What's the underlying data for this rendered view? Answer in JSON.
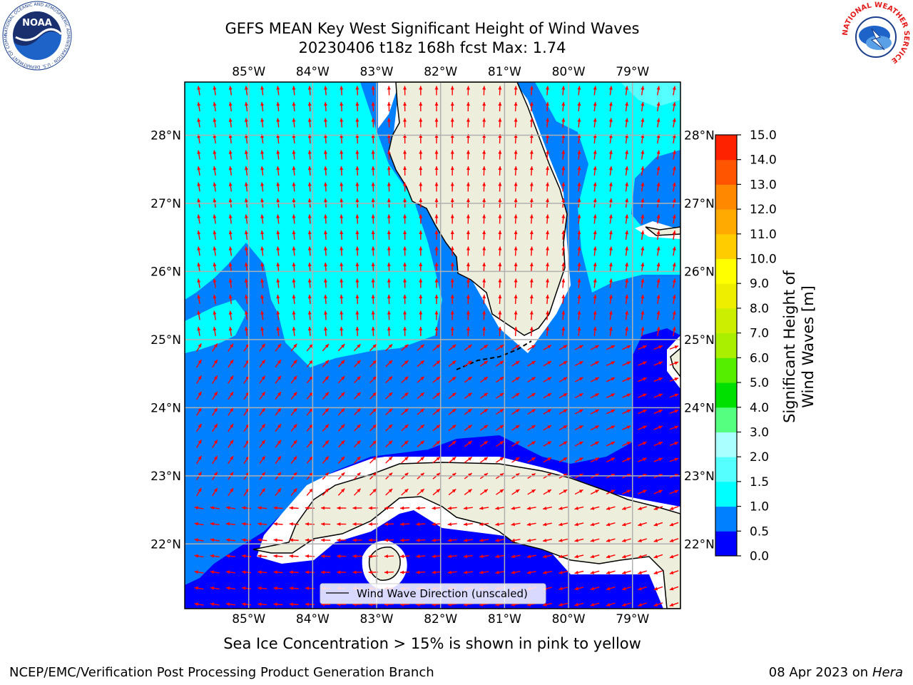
{
  "header": {
    "title_line1": "GEFS MEAN Key West Significant Height of Wind Waves",
    "title_line2": "20230406 t18z 168h fcst   Max: 1.74"
  },
  "logos": {
    "noaa_text": "NOAA",
    "noaa_ring_text": "NATIONAL OCEANIC AND ATMOSPHERIC ADMINISTRATION · U.S. DEPARTMENT OF COMMERCE",
    "nws_ring_text": "NATIONAL WEATHER SERVICE"
  },
  "chart_data": {
    "type": "heatmap",
    "title": "GEFS MEAN Key West Significant Height of Wind Waves",
    "run": "20230406 t18z 168h fcst",
    "max_value": 1.74,
    "x_ticks": [
      {
        "value": -85,
        "label": "85°W"
      },
      {
        "value": -84,
        "label": "84°W"
      },
      {
        "value": -83,
        "label": "83°W"
      },
      {
        "value": -82,
        "label": "82°W"
      },
      {
        "value": -81,
        "label": "81°W"
      },
      {
        "value": -80,
        "label": "80°W"
      },
      {
        "value": -79,
        "label": "79°W"
      }
    ],
    "y_ticks": [
      {
        "value": 28,
        "label": "28°N"
      },
      {
        "value": 27,
        "label": "27°N"
      },
      {
        "value": 26,
        "label": "26°N"
      },
      {
        "value": 25,
        "label": "25°N"
      },
      {
        "value": 24,
        "label": "24°N"
      },
      {
        "value": 23,
        "label": "23°N"
      },
      {
        "value": 22,
        "label": "22°N"
      }
    ],
    "xlim": [
      -86,
      -78.25
    ],
    "ylim": [
      21.05,
      28.78
    ],
    "grid": true,
    "colorbar": {
      "label": "Significant Height of Wind Waves [m]",
      "levels": [
        0.0,
        0.5,
        1.0,
        1.5,
        2.0,
        3.0,
        4.0,
        5.0,
        6.0,
        7.0,
        8.0,
        9.0,
        10.0,
        11.0,
        12.0,
        13.0,
        14.0,
        15.0
      ],
      "level_labels": [
        "0.0",
        "0.5",
        "1.0",
        "1.5",
        "2.0",
        "3.0",
        "4.0",
        "5.0",
        "6.0",
        "7.0",
        "8.0",
        "9.0",
        "10.0",
        "11.0",
        "12.0",
        "13.0",
        "14.0",
        "15.0"
      ],
      "colors": [
        "#0000ff",
        "#0080ff",
        "#00ffff",
        "#55ffff",
        "#aaffff",
        "#55ff80",
        "#00e000",
        "#55ee00",
        "#aaee00",
        "#ccee00",
        "#eeee00",
        "#ffff00",
        "#ffcc00",
        "#ffaa00",
        "#ff8800",
        "#ff5500",
        "#ff2200"
      ]
    },
    "legend": {
      "label": "Wind Wave Direction (unscaled)",
      "placement": "bottom-center"
    },
    "colors": {
      "land": "#eeeedd",
      "arrow": "#ff0000",
      "grid": "#b0b0b0",
      "coast": "#000000"
    }
  },
  "footer": {
    "subtitle": "Sea Ice Concentration > 15% is shown in pink to yellow",
    "left": "NCEP/EMC/Verification Post Processing Product Generation Branch",
    "right_date": "08 Apr 2023 on ",
    "right_host": "Hera"
  }
}
